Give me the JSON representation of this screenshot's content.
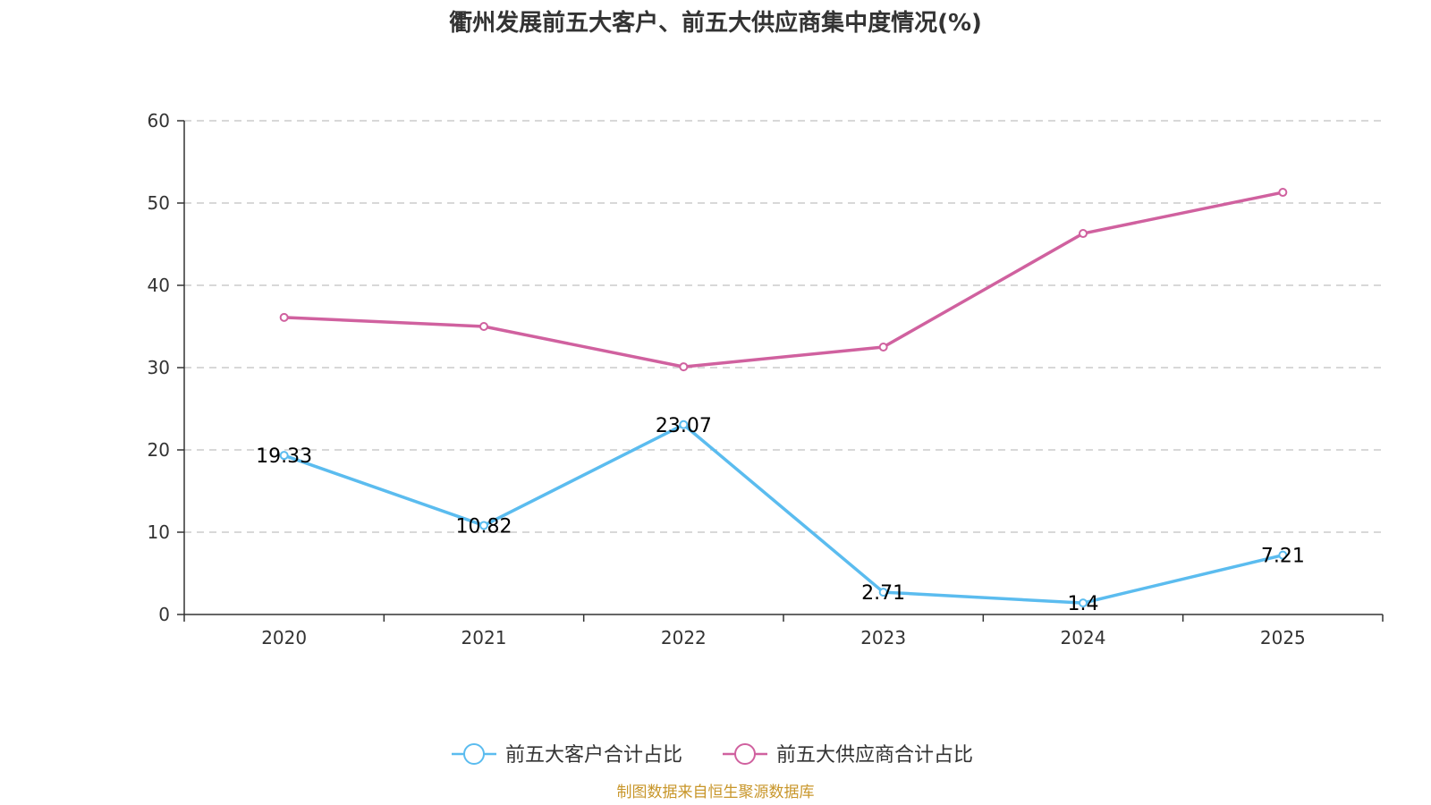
{
  "chart_data": {
    "type": "line",
    "title": "衢州发展前五大客户、前五大供应商集中度情况(%)",
    "categories": [
      "2020",
      "2021",
      "2022",
      "2023",
      "2024",
      "2025"
    ],
    "series": [
      {
        "name": "前五大客户合计占比",
        "color": "#5bbcef",
        "values": [
          19.33,
          10.82,
          23.07,
          2.71,
          1.4,
          7.21
        ],
        "labels": [
          "19.33",
          "10.82",
          "23.07",
          "2.71",
          "1.4",
          "7.21"
        ],
        "show_labels": true
      },
      {
        "name": "前五大供应商合计占比",
        "color": "#d0619f",
        "values": [
          36.1,
          35.0,
          30.1,
          32.5,
          46.3,
          51.3
        ],
        "show_labels": false
      }
    ],
    "ylim": [
      0,
      60
    ],
    "yticks": [
      0,
      10,
      20,
      30,
      40,
      50,
      60
    ],
    "grid": true,
    "legend_position": "bottom-center",
    "xlabel": "",
    "ylabel": ""
  },
  "source": "制图数据来自恒生聚源数据库"
}
